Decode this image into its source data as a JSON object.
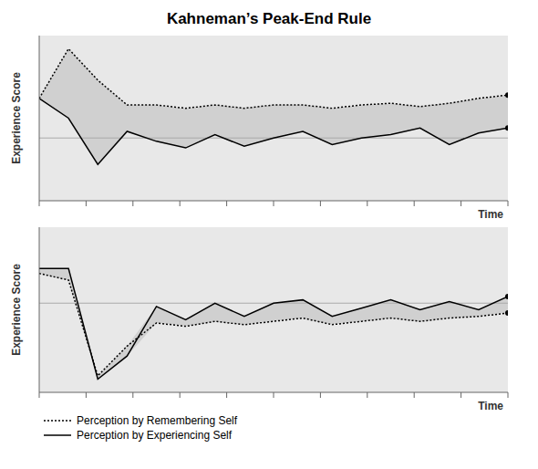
{
  "chart_data": [
    {
      "type": "line",
      "title": "Kahneman’s Peak-End Rule",
      "x_label": "Time",
      "y_label": "Experience Score",
      "x": [
        0,
        0.0625,
        0.125,
        0.1875,
        0.25,
        0.3125,
        0.375,
        0.4375,
        0.5,
        0.5625,
        0.625,
        0.6875,
        0.75,
        0.8125,
        0.875,
        0.9375,
        1
      ],
      "series": [
        {
          "name": "Perception by Remembering Self",
          "color": "#000000",
          "line_style": "dotted",
          "values": [
            0.62,
            0.92,
            0.73,
            0.58,
            0.58,
            0.56,
            0.58,
            0.56,
            0.58,
            0.58,
            0.56,
            0.58,
            0.59,
            0.57,
            0.59,
            0.62,
            0.64
          ]
        },
        {
          "name": "Perception by Experiencing Self",
          "color": "#000000",
          "line_style": "solid",
          "values": [
            0.62,
            0.5,
            0.22,
            0.42,
            0.36,
            0.32,
            0.4,
            0.33,
            0.38,
            0.42,
            0.34,
            0.38,
            0.4,
            0.44,
            0.34,
            0.41,
            0.44
          ]
        }
      ],
      "reference_line": 0.38,
      "xlim": [
        0,
        1
      ],
      "xticks": [
        0,
        0.1,
        0.2,
        0.3,
        0.4,
        0.5,
        0.6,
        0.7,
        0.8,
        0.9,
        1
      ],
      "ylim": [
        0,
        1
      ],
      "tick_labels": false,
      "grid": false
    },
    {
      "type": "line",
      "x_label": "Time",
      "y_label": "Experience Score",
      "x": [
        0,
        0.0625,
        0.125,
        0.1875,
        0.25,
        0.3125,
        0.375,
        0.4375,
        0.5,
        0.5625,
        0.625,
        0.6875,
        0.75,
        0.8125,
        0.875,
        0.9375,
        1
      ],
      "series": [
        {
          "name": "Perception by Remembering Self",
          "color": "#000000",
          "line_style": "dotted",
          "values": [
            0.72,
            0.68,
            0.1,
            0.28,
            0.42,
            0.4,
            0.43,
            0.41,
            0.43,
            0.45,
            0.41,
            0.43,
            0.45,
            0.43,
            0.45,
            0.46,
            0.48
          ]
        },
        {
          "name": "Perception by Experiencing Self",
          "color": "#000000",
          "line_style": "solid",
          "values": [
            0.75,
            0.75,
            0.08,
            0.22,
            0.52,
            0.44,
            0.54,
            0.46,
            0.54,
            0.56,
            0.46,
            0.51,
            0.56,
            0.5,
            0.55,
            0.5,
            0.58
          ]
        }
      ],
      "reference_line": 0.54,
      "xlim": [
        0,
        1
      ],
      "xticks": [
        0,
        0.1,
        0.2,
        0.3,
        0.4,
        0.5,
        0.6,
        0.7,
        0.8,
        0.9,
        1
      ],
      "ylim": [
        0,
        1
      ],
      "tick_labels": false,
      "grid": false,
      "legend": "lower left"
    }
  ]
}
